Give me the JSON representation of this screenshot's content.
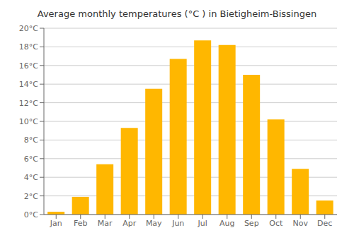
{
  "chart_data": {
    "type": "bar",
    "title": "Average monthly temperatures (°C ) in Bietigheim-Bissingen",
    "categories": [
      "Jan",
      "Feb",
      "Mar",
      "Apr",
      "May",
      "Jun",
      "Jul",
      "Aug",
      "Sep",
      "Oct",
      "Nov",
      "Dec"
    ],
    "values": [
      0.3,
      1.9,
      5.4,
      9.3,
      13.5,
      16.7,
      18.7,
      18.2,
      15.0,
      10.2,
      4.9,
      1.5
    ],
    "color": "#FFB700",
    "ylim": [
      0,
      20
    ],
    "yticks": [
      {
        "value": 0,
        "label": "0°C"
      },
      {
        "value": 2,
        "label": "2°C"
      },
      {
        "value": 4,
        "label": "4°C"
      },
      {
        "value": 6,
        "label": "6°C"
      },
      {
        "value": 8,
        "label": "8°C"
      },
      {
        "value": 10,
        "label": "10°C"
      },
      {
        "value": 12,
        "label": "12°C"
      },
      {
        "value": 14,
        "label": "14°C"
      },
      {
        "value": 16,
        "label": "16°C"
      },
      {
        "value": 18,
        "label": "18°C"
      },
      {
        "value": 20,
        "label": "20°C"
      }
    ],
    "grid": true
  }
}
